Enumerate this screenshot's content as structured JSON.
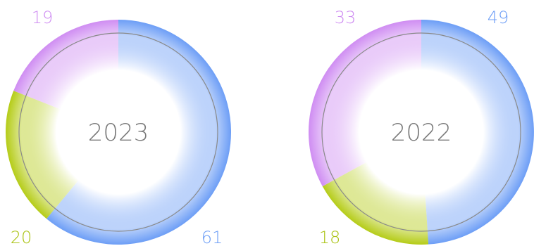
{
  "chart_data": [
    {
      "type": "pie",
      "title": "2023",
      "slices": [
        {
          "category": "blue",
          "value": 61,
          "label": "61",
          "color": "#6d9ef6"
        },
        {
          "category": "green",
          "value": 20,
          "label": "20",
          "color": "#b5cc18"
        },
        {
          "category": "purple",
          "value": 19,
          "label": "19",
          "color": "#cf8df2"
        }
      ]
    },
    {
      "type": "pie",
      "title": "2022",
      "slices": [
        {
          "category": "blue",
          "value": 49,
          "label": "49",
          "color": "#6d9ef6"
        },
        {
          "category": "green",
          "value": 18,
          "label": "18",
          "color": "#b5cc18"
        },
        {
          "category": "purple",
          "value": 33,
          "label": "33",
          "color": "#cf8df2"
        }
      ]
    }
  ]
}
